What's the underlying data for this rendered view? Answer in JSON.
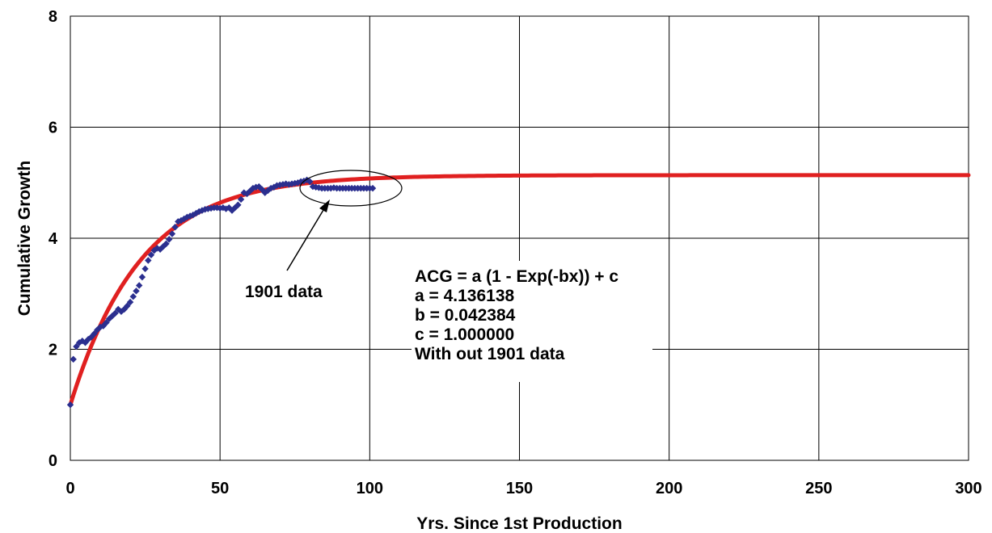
{
  "chart_data": {
    "type": "scatter",
    "title": "",
    "xlabel": "Yrs. Since 1st Production",
    "ylabel": "Cumulative Growth",
    "xlim": [
      0,
      300
    ],
    "ylim": [
      0,
      8
    ],
    "x_ticks": [
      "0",
      "50",
      "100",
      "150",
      "200",
      "250",
      "300"
    ],
    "y_ticks": [
      "0",
      "2",
      "4",
      "6",
      "8"
    ],
    "grid": true,
    "legend": "none",
    "fit": {
      "equation": "ACG = a (1 - Exp(-bx)) + c",
      "a_line": "a = 4.136138",
      "b_line": "b = 0.042384",
      "c_line": "c = 1.000000",
      "note": "With out 1901 data",
      "a": 4.136138,
      "b": 0.042384,
      "c": 1.0,
      "color": "#e02020"
    },
    "marker_color": "#2b2f8f",
    "annotation_label": "1901 data",
    "series": [
      {
        "values": [
          [
            0,
            1.0
          ],
          [
            1,
            1.82
          ],
          [
            2,
            2.05
          ],
          [
            3,
            2.12
          ],
          [
            4,
            2.15
          ],
          [
            5,
            2.12
          ],
          [
            6,
            2.18
          ],
          [
            7,
            2.22
          ],
          [
            8,
            2.28
          ],
          [
            9,
            2.35
          ],
          [
            10,
            2.4
          ],
          [
            11,
            2.42
          ],
          [
            12,
            2.48
          ],
          [
            13,
            2.55
          ],
          [
            14,
            2.6
          ],
          [
            15,
            2.65
          ],
          [
            16,
            2.72
          ],
          [
            17,
            2.68
          ],
          [
            18,
            2.72
          ],
          [
            19,
            2.78
          ],
          [
            20,
            2.85
          ],
          [
            21,
            2.95
          ],
          [
            22,
            3.05
          ],
          [
            23,
            3.15
          ],
          [
            24,
            3.3
          ],
          [
            25,
            3.45
          ],
          [
            26,
            3.6
          ],
          [
            27,
            3.7
          ],
          [
            28,
            3.78
          ],
          [
            29,
            3.82
          ],
          [
            30,
            3.8
          ],
          [
            31,
            3.85
          ],
          [
            32,
            3.9
          ],
          [
            33,
            3.98
          ],
          [
            34,
            4.08
          ],
          [
            35,
            4.2
          ],
          [
            36,
            4.3
          ],
          [
            37,
            4.32
          ],
          [
            38,
            4.35
          ],
          [
            39,
            4.38
          ],
          [
            40,
            4.4
          ],
          [
            41,
            4.42
          ],
          [
            42,
            4.45
          ],
          [
            43,
            4.48
          ],
          [
            44,
            4.5
          ],
          [
            45,
            4.52
          ],
          [
            46,
            4.53
          ],
          [
            47,
            4.54
          ],
          [
            48,
            4.55
          ],
          [
            49,
            4.55
          ],
          [
            50,
            4.54
          ],
          [
            51,
            4.55
          ],
          [
            52,
            4.53
          ],
          [
            53,
            4.55
          ],
          [
            54,
            4.5
          ],
          [
            55,
            4.55
          ],
          [
            56,
            4.6
          ],
          [
            57,
            4.7
          ],
          [
            58,
            4.82
          ],
          [
            59,
            4.8
          ],
          [
            60,
            4.85
          ],
          [
            61,
            4.9
          ],
          [
            62,
            4.92
          ],
          [
            63,
            4.93
          ],
          [
            64,
            4.88
          ],
          [
            65,
            4.82
          ],
          [
            66,
            4.86
          ],
          [
            67,
            4.9
          ],
          [
            68,
            4.92
          ],
          [
            69,
            4.95
          ],
          [
            70,
            4.96
          ],
          [
            71,
            4.97
          ],
          [
            72,
            4.98
          ],
          [
            73,
            4.97
          ],
          [
            74,
            4.98
          ],
          [
            75,
            4.99
          ],
          [
            76,
            5.0
          ],
          [
            77,
            5.02
          ],
          [
            78,
            5.03
          ],
          [
            79,
            5.05
          ],
          [
            80,
            5.02
          ],
          [
            81,
            4.93
          ],
          [
            82,
            4.92
          ],
          [
            83,
            4.91
          ],
          [
            84,
            4.9
          ],
          [
            85,
            4.9
          ],
          [
            86,
            4.9
          ],
          [
            87,
            4.9
          ],
          [
            88,
            4.91
          ],
          [
            89,
            4.9
          ],
          [
            90,
            4.9
          ],
          [
            91,
            4.9
          ],
          [
            92,
            4.9
          ],
          [
            93,
            4.9
          ],
          [
            94,
            4.9
          ],
          [
            95,
            4.9
          ],
          [
            96,
            4.9
          ],
          [
            97,
            4.9
          ],
          [
            98,
            4.9
          ],
          [
            99,
            4.9
          ],
          [
            100,
            4.9
          ],
          [
            101,
            4.9
          ]
        ]
      }
    ]
  }
}
